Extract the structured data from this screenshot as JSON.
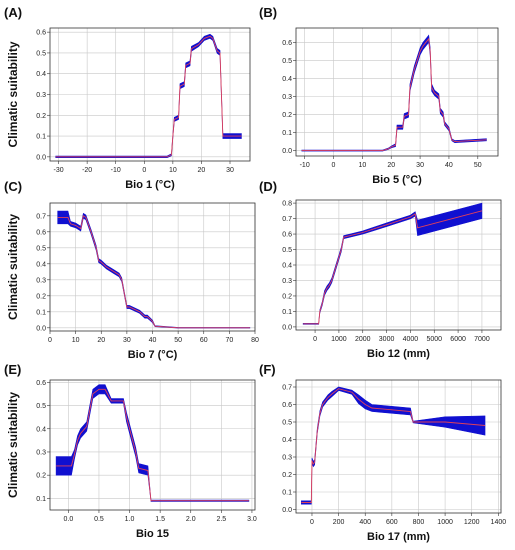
{
  "figure": {
    "ylabel": "Climatic suitability",
    "colors": {
      "band": "#1010d0",
      "mean_line": "#e0405a",
      "grid": "#c8c8c8",
      "frame": "#333333"
    }
  },
  "chart_data": [
    {
      "type": "line",
      "panel": "(A)",
      "xlabel": "Bio 1 (°C)",
      "ylabel": "Climatic suitability",
      "xlim": [
        -33,
        37
      ],
      "ylim": [
        -0.02,
        0.62
      ],
      "xticks": [
        -30,
        -20,
        -10,
        0,
        10,
        20,
        30
      ],
      "yticks": [
        0.0,
        0.1,
        0.2,
        0.3,
        0.4,
        0.5,
        0.6
      ],
      "x": [
        -31,
        8,
        9.5,
        10,
        10.5,
        12,
        12.5,
        14,
        14.5,
        16,
        16.5,
        19,
        21,
        23,
        24,
        24.5,
        25.5,
        26.5,
        27,
        27.5,
        34
      ],
      "mean": [
        0.0,
        0.0,
        0.01,
        0.1,
        0.18,
        0.19,
        0.34,
        0.35,
        0.44,
        0.45,
        0.52,
        0.54,
        0.57,
        0.58,
        0.57,
        0.55,
        0.51,
        0.5,
        0.3,
        0.1,
        0.1
      ],
      "band": [
        0.004,
        0.004,
        0.005,
        0.008,
        0.01,
        0.01,
        0.012,
        0.012,
        0.012,
        0.012,
        0.012,
        0.01,
        0.01,
        0.01,
        0.01,
        0.01,
        0.012,
        0.012,
        0.012,
        0.012,
        0.012
      ],
      "grid": true
    },
    {
      "type": "line",
      "panel": "(B)",
      "xlabel": "Bio 5 (°C)",
      "ylabel": "",
      "xlim": [
        -13,
        57
      ],
      "ylim": [
        -0.03,
        0.68
      ],
      "xticks": [
        -10,
        0,
        10,
        20,
        30,
        40,
        50
      ],
      "yticks": [
        0.0,
        0.1,
        0.2,
        0.3,
        0.4,
        0.5,
        0.6
      ],
      "x": [
        -11,
        17,
        19,
        20,
        21.5,
        22,
        24,
        24.5,
        26,
        26.5,
        28,
        29,
        30,
        31,
        32,
        33,
        33.5,
        34,
        35,
        36.5,
        37,
        38,
        38.5,
        40,
        41,
        42,
        53
      ],
      "mean": [
        0.0,
        0.0,
        0.01,
        0.02,
        0.03,
        0.13,
        0.13,
        0.19,
        0.2,
        0.35,
        0.45,
        0.5,
        0.55,
        0.58,
        0.6,
        0.62,
        0.55,
        0.35,
        0.32,
        0.3,
        0.22,
        0.2,
        0.15,
        0.12,
        0.06,
        0.05,
        0.06
      ],
      "band": [
        0.003,
        0.003,
        0.004,
        0.005,
        0.008,
        0.012,
        0.012,
        0.015,
        0.015,
        0.02,
        0.02,
        0.02,
        0.02,
        0.02,
        0.02,
        0.02,
        0.02,
        0.02,
        0.015,
        0.015,
        0.015,
        0.015,
        0.01,
        0.01,
        0.006,
        0.006,
        0.006
      ],
      "grid": true
    },
    {
      "type": "line",
      "panel": "(C)",
      "xlabel": "Bio 7 (°C)",
      "ylabel": "Climatic suitability",
      "xlim": [
        0,
        80
      ],
      "ylim": [
        -0.02,
        0.78
      ],
      "xticks": [
        0,
        10,
        20,
        30,
        40,
        50,
        60,
        70,
        80
      ],
      "yticks": [
        0.0,
        0.1,
        0.2,
        0.3,
        0.4,
        0.5,
        0.6,
        0.7
      ],
      "x": [
        3,
        7,
        8,
        10,
        12,
        13,
        14,
        16,
        18,
        19,
        20,
        22,
        25,
        27,
        28,
        30,
        31,
        35,
        37,
        38,
        40,
        41,
        50,
        78
      ],
      "mean": [
        0.69,
        0.69,
        0.65,
        0.64,
        0.62,
        0.7,
        0.69,
        0.6,
        0.5,
        0.42,
        0.41,
        0.38,
        0.35,
        0.33,
        0.3,
        0.13,
        0.13,
        0.1,
        0.07,
        0.07,
        0.04,
        0.01,
        0.0,
        0.0
      ],
      "band": [
        0.04,
        0.04,
        0.015,
        0.015,
        0.015,
        0.015,
        0.015,
        0.015,
        0.015,
        0.012,
        0.012,
        0.012,
        0.012,
        0.012,
        0.012,
        0.01,
        0.01,
        0.01,
        0.01,
        0.01,
        0.008,
        0.003,
        0.002,
        0.002
      ],
      "grid": true
    },
    {
      "type": "line",
      "panel": "(D)",
      "xlabel": "Bio 12 (mm)",
      "ylabel": "",
      "xlim": [
        -800,
        7800
      ],
      "ylim": [
        -0.02,
        0.82
      ],
      "xticks": [
        0,
        1000,
        2000,
        3000,
        4000,
        5000,
        6000,
        7000
      ],
      "yticks": [
        0.0,
        0.1,
        0.2,
        0.3,
        0.4,
        0.5,
        0.6,
        0.7,
        0.8
      ],
      "x": [
        -500,
        150,
        200,
        300,
        400,
        500,
        600,
        700,
        800,
        900,
        1000,
        1100,
        1200,
        2000,
        3000,
        4000,
        4200,
        4300,
        7000
      ],
      "mean": [
        0.02,
        0.02,
        0.1,
        0.15,
        0.22,
        0.25,
        0.27,
        0.3,
        0.35,
        0.4,
        0.45,
        0.5,
        0.58,
        0.61,
        0.66,
        0.71,
        0.73,
        0.64,
        0.75
      ],
      "band": [
        0.003,
        0.003,
        0.01,
        0.012,
        0.015,
        0.015,
        0.015,
        0.015,
        0.015,
        0.015,
        0.015,
        0.015,
        0.01,
        0.01,
        0.012,
        0.012,
        0.014,
        0.05,
        0.05
      ],
      "grid": true
    },
    {
      "type": "line",
      "panel": "(E)",
      "xlabel": "Bio 15",
      "ylabel": "Climatic suitability",
      "xlim": [
        -0.3,
        3.05
      ],
      "ylim": [
        0.05,
        0.61
      ],
      "xticks": [
        0.0,
        0.5,
        1.0,
        1.5,
        2.0,
        2.5,
        3.0
      ],
      "yticks": [
        0.1,
        0.2,
        0.3,
        0.4,
        0.5,
        0.6
      ],
      "x": [
        -0.2,
        0.05,
        0.1,
        0.15,
        0.2,
        0.3,
        0.35,
        0.4,
        0.5,
        0.6,
        0.7,
        0.9,
        0.95,
        1.0,
        1.1,
        1.15,
        1.3,
        1.35,
        2.95
      ],
      "mean": [
        0.24,
        0.24,
        0.29,
        0.35,
        0.38,
        0.41,
        0.48,
        0.55,
        0.57,
        0.57,
        0.52,
        0.52,
        0.45,
        0.4,
        0.3,
        0.23,
        0.22,
        0.09,
        0.09
      ],
      "band": [
        0.04,
        0.04,
        0.02,
        0.02,
        0.02,
        0.02,
        0.02,
        0.02,
        0.02,
        0.02,
        0.01,
        0.01,
        0.02,
        0.02,
        0.02,
        0.02,
        0.02,
        0.003,
        0.003
      ],
      "grid": true
    },
    {
      "type": "line",
      "panel": "(F)",
      "xlabel": "Bio 17 (mm)",
      "ylabel": "",
      "xlim": [
        -120,
        1420
      ],
      "ylim": [
        -0.02,
        0.74
      ],
      "xticks": [
        0,
        200,
        400,
        600,
        800,
        1000,
        1200,
        1400
      ],
      "yticks": [
        0.0,
        0.1,
        0.2,
        0.3,
        0.4,
        0.5,
        0.6,
        0.7
      ],
      "x": [
        -80,
        -5,
        0,
        10,
        20,
        30,
        40,
        60,
        80,
        100,
        120,
        150,
        200,
        300,
        350,
        400,
        450,
        740,
        760,
        1000,
        1300
      ],
      "mean": [
        0.04,
        0.04,
        0.28,
        0.26,
        0.27,
        0.36,
        0.45,
        0.55,
        0.6,
        0.62,
        0.64,
        0.66,
        0.69,
        0.67,
        0.63,
        0.6,
        0.58,
        0.56,
        0.5,
        0.5,
        0.48
      ],
      "band": [
        0.01,
        0.01,
        0.015,
        0.015,
        0.015,
        0.015,
        0.015,
        0.015,
        0.015,
        0.015,
        0.015,
        0.015,
        0.01,
        0.012,
        0.025,
        0.025,
        0.02,
        0.02,
        0.005,
        0.03,
        0.055
      ],
      "grid": true
    }
  ]
}
